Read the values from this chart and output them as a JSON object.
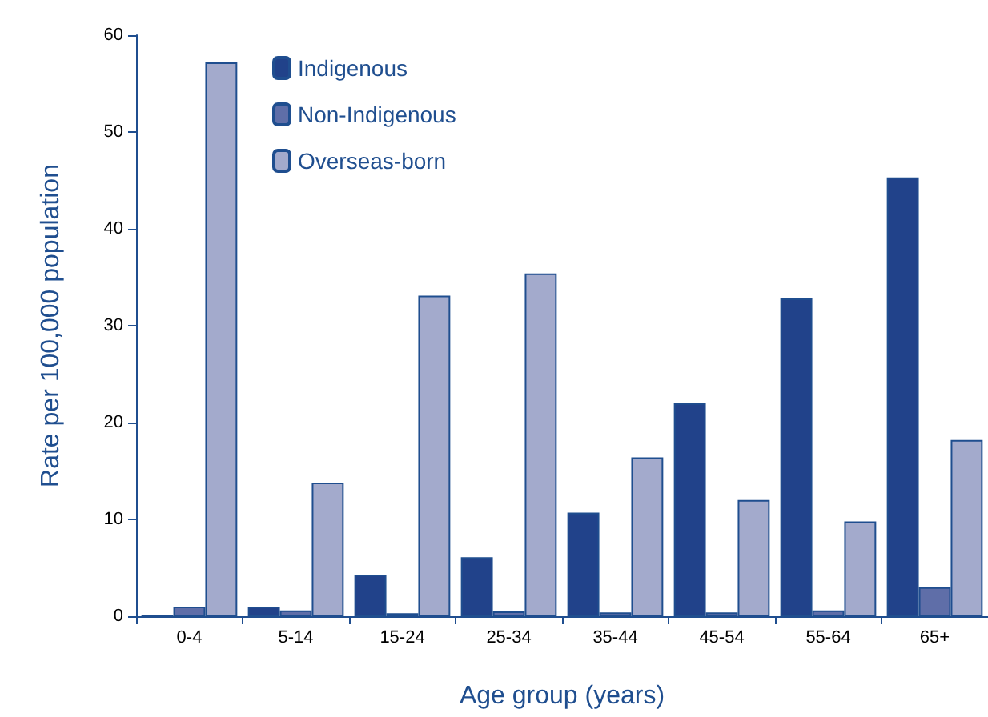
{
  "chart_data": {
    "type": "bar",
    "xlabel": "Age group (years)",
    "ylabel": "Rate per 100,000 population",
    "categories": [
      "0-4",
      "5-14",
      "15-24",
      "25-34",
      "35-44",
      "45-54",
      "55-64",
      "65+"
    ],
    "series": [
      {
        "name": "Indigenous",
        "color": "#21428a",
        "values": [
          0,
          1.0,
          4.3,
          6.1,
          10.7,
          22.0,
          32.8,
          45.3
        ]
      },
      {
        "name": "Non-Indigenous",
        "color": "#5f6ea8",
        "values": [
          1.0,
          0.6,
          0.3,
          0.5,
          0.4,
          0.4,
          0.6,
          3.0
        ]
      },
      {
        "name": "Overseas-born",
        "color": "#a3aacc",
        "values": [
          57.2,
          13.8,
          33.1,
          35.4,
          16.4,
          12.0,
          9.8,
          18.2
        ]
      }
    ],
    "ylim": [
      0,
      60
    ],
    "yticks": [
      0,
      10,
      20,
      30,
      40,
      50,
      60
    ],
    "grid": false,
    "legend": "top"
  }
}
